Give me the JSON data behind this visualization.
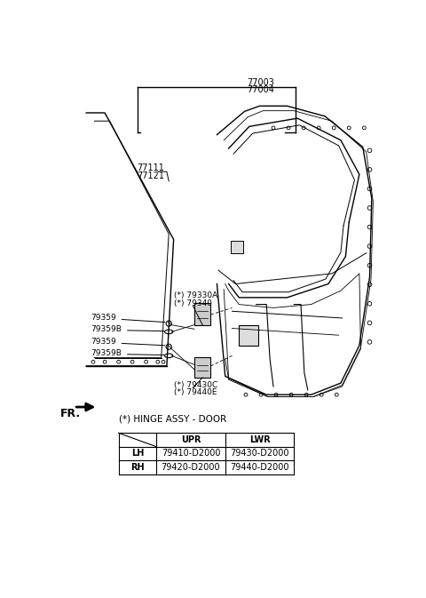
{
  "bg_color": "#ffffff",
  "line_color": "#000000",
  "fig_width": 4.8,
  "fig_height": 6.73,
  "part_labels_top": [
    "77003",
    "77004"
  ],
  "part_labels_glass": [
    "77111",
    "77121"
  ],
  "part_labels_upper_hinge": [
    "(*) 79330A",
    "(*) 79340"
  ],
  "part_label_79359_upper": "79359",
  "part_label_79359B_upper": "79359B",
  "part_label_79359_lower": "79359",
  "part_label_79359B_lower": "79359B",
  "part_labels_lower_hinge": [
    "(*) 79430C",
    "(*) 79440E"
  ],
  "fr_label": "FR.",
  "table_title": "(*) HINGE ASSY - DOOR",
  "table_headers": [
    "",
    "UPR",
    "LWR"
  ],
  "table_row1": [
    "LH",
    "79410-D2000",
    "79430-D2000"
  ],
  "table_row2": [
    "RH",
    "79420-D2000",
    "79440-D2000"
  ]
}
